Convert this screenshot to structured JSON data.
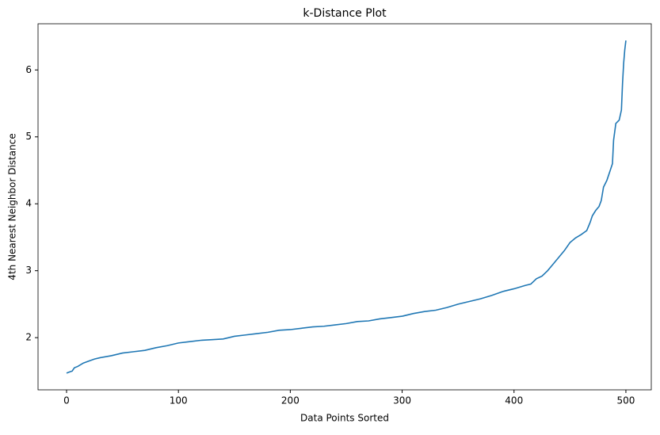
{
  "chart_data": {
    "type": "line",
    "title": "k-Distance Plot",
    "x_label": "Data Points Sorted",
    "y_label": "4th Nearest Neighbor Distance",
    "x": [
      0,
      3,
      5,
      7,
      10,
      15,
      20,
      25,
      30,
      40,
      50,
      60,
      70,
      80,
      90,
      100,
      110,
      120,
      130,
      140,
      150,
      160,
      170,
      180,
      190,
      200,
      210,
      220,
      230,
      240,
      250,
      260,
      270,
      280,
      290,
      300,
      310,
      320,
      330,
      340,
      350,
      360,
      370,
      380,
      390,
      400,
      410,
      415,
      420,
      425,
      430,
      435,
      440,
      445,
      450,
      455,
      460,
      465,
      468,
      470,
      473,
      476,
      478,
      480,
      483,
      486,
      488,
      489,
      491,
      494,
      496,
      497,
      498,
      499,
      500
    ],
    "series": [
      {
        "name": "k-distance",
        "color": "#1f77b4",
        "values": [
          1.47,
          1.49,
          1.5,
          1.55,
          1.57,
          1.62,
          1.65,
          1.68,
          1.7,
          1.73,
          1.77,
          1.79,
          1.81,
          1.85,
          1.88,
          1.92,
          1.94,
          1.96,
          1.97,
          1.98,
          2.02,
          2.04,
          2.06,
          2.08,
          2.11,
          2.12,
          2.14,
          2.16,
          2.17,
          2.19,
          2.21,
          2.24,
          2.25,
          2.28,
          2.3,
          2.32,
          2.36,
          2.39,
          2.41,
          2.45,
          2.5,
          2.54,
          2.58,
          2.63,
          2.69,
          2.73,
          2.78,
          2.8,
          2.88,
          2.92,
          3.0,
          3.1,
          3.2,
          3.3,
          3.42,
          3.49,
          3.54,
          3.6,
          3.72,
          3.82,
          3.9,
          3.96,
          4.05,
          4.25,
          4.35,
          4.5,
          4.6,
          4.95,
          5.2,
          5.25,
          5.4,
          5.8,
          6.1,
          6.3,
          6.44
        ]
      }
    ],
    "xlim": [
      -25.5,
      522.7
    ],
    "ylim": [
      1.22,
      6.69
    ],
    "xticks": [
      0,
      100,
      200,
      300,
      400,
      500
    ],
    "yticks": [
      2,
      3,
      4,
      5,
      6
    ]
  }
}
